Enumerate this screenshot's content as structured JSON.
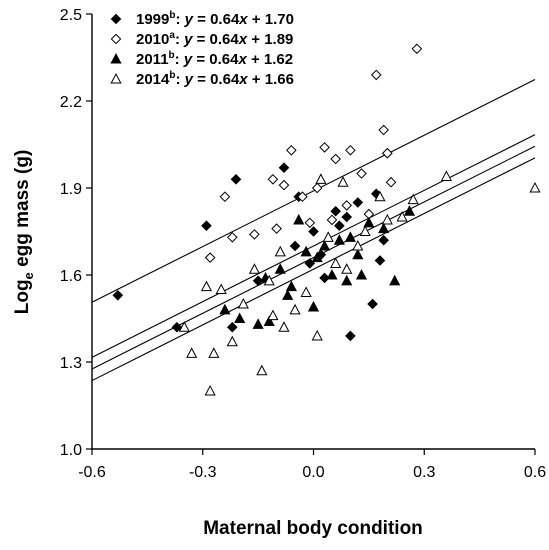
{
  "chart_data": {
    "type": "scatter",
    "xlabel": "Maternal body condition",
    "ylabel": "Log",
    "ylabel_sub": "e",
    "ylabel_rest": " egg mass (g)",
    "xlim": [
      -0.6,
      0.6
    ],
    "ylim": [
      1.0,
      2.5
    ],
    "xticks": [
      "-0.6",
      "-0.3",
      "0.0",
      "0.3",
      "0.6"
    ],
    "yticks": [
      "1.0",
      "1.3",
      "1.6",
      "1.9",
      "2.2",
      "2.5"
    ],
    "legend_position": "top-left",
    "series": [
      {
        "name": "1999",
        "sup": "b",
        "equation_y": "y",
        "equation_x": "x",
        "equation_text": " = 0.64",
        "equation_tail": " + 1.70",
        "marker": "diamond-filled",
        "slope": 0.64,
        "intercept": 1.7,
        "points": [
          [
            -0.53,
            1.53
          ],
          [
            -0.29,
            1.77
          ],
          [
            -0.37,
            1.42
          ],
          [
            -0.21,
            1.93
          ],
          [
            -0.08,
            1.97
          ],
          [
            -0.04,
            1.87
          ],
          [
            0.0,
            1.75
          ],
          [
            0.02,
            1.67
          ],
          [
            -0.01,
            1.64
          ],
          [
            0.06,
            1.82
          ],
          [
            0.09,
            1.8
          ],
          [
            0.1,
            1.39
          ],
          [
            0.16,
            1.5
          ],
          [
            0.18,
            1.65
          ],
          [
            0.19,
            1.72
          ],
          [
            0.2,
            2.02
          ],
          [
            0.17,
            1.88
          ],
          [
            -0.22,
            1.42
          ],
          [
            -0.15,
            1.58
          ],
          [
            0.03,
            1.59
          ],
          [
            0.07,
            1.77
          ],
          [
            0.12,
            1.85
          ],
          [
            -0.05,
            1.7
          ]
        ]
      },
      {
        "name": "2010",
        "sup": "a",
        "equation_y": "y",
        "equation_x": "x",
        "equation_text": " = 0.64",
        "equation_tail": " + 1.89",
        "marker": "diamond-open",
        "slope": 0.64,
        "intercept": 1.89,
        "points": [
          [
            0.28,
            2.38
          ],
          [
            0.17,
            2.29
          ],
          [
            0.19,
            2.1
          ],
          [
            0.2,
            2.02
          ],
          [
            -0.16,
            1.74
          ],
          [
            -0.22,
            1.73
          ],
          [
            -0.24,
            1.87
          ],
          [
            -0.28,
            1.66
          ],
          [
            -0.08,
            1.91
          ],
          [
            -0.06,
            2.03
          ],
          [
            0.03,
            2.04
          ],
          [
            0.06,
            2.0
          ],
          [
            0.1,
            2.03
          ],
          [
            0.13,
            1.95
          ],
          [
            0.01,
            1.9
          ],
          [
            -0.03,
            1.87
          ],
          [
            -0.01,
            1.78
          ],
          [
            0.05,
            1.79
          ],
          [
            0.09,
            1.84
          ],
          [
            -0.11,
            1.93
          ],
          [
            -0.1,
            1.76
          ],
          [
            0.15,
            1.81
          ],
          [
            0.21,
            1.92
          ]
        ]
      },
      {
        "name": "2011",
        "sup": "b",
        "equation_y": "y",
        "equation_x": "x",
        "equation_text": " = 0.64",
        "equation_tail": " + 1.62",
        "marker": "triangle-filled",
        "slope": 0.64,
        "intercept": 1.62,
        "points": [
          [
            -0.24,
            1.48
          ],
          [
            -0.2,
            1.45
          ],
          [
            -0.15,
            1.43
          ],
          [
            -0.12,
            1.44
          ],
          [
            -0.13,
            1.59
          ],
          [
            -0.09,
            1.62
          ],
          [
            -0.06,
            1.56
          ],
          [
            -0.04,
            1.79
          ],
          [
            -0.02,
            1.68
          ],
          [
            0.01,
            1.66
          ],
          [
            0.03,
            1.7
          ],
          [
            0.05,
            1.6
          ],
          [
            0.07,
            1.72
          ],
          [
            0.09,
            1.58
          ],
          [
            0.12,
            1.67
          ],
          [
            0.15,
            1.78
          ],
          [
            0.19,
            1.76
          ],
          [
            0.22,
            1.58
          ],
          [
            0.26,
            1.82
          ],
          [
            -0.07,
            1.53
          ],
          [
            0.0,
            1.49
          ],
          [
            0.1,
            1.73
          ],
          [
            0.13,
            1.6
          ]
        ]
      },
      {
        "name": "2014",
        "sup": "b",
        "equation_y": "y",
        "equation_x": "x",
        "equation_text": " = 0.64",
        "equation_tail": " + 1.66",
        "marker": "triangle-open",
        "slope": 0.64,
        "intercept": 1.66,
        "points": [
          [
            -0.35,
            1.42
          ],
          [
            -0.33,
            1.33
          ],
          [
            -0.29,
            1.56
          ],
          [
            -0.27,
            1.33
          ],
          [
            -0.28,
            1.2
          ],
          [
            -0.25,
            1.55
          ],
          [
            -0.22,
            1.37
          ],
          [
            -0.19,
            1.5
          ],
          [
            -0.14,
            1.27
          ],
          [
            -0.16,
            1.62
          ],
          [
            -0.11,
            1.46
          ],
          [
            -0.08,
            1.42
          ],
          [
            -0.05,
            1.48
          ],
          [
            -0.02,
            1.54
          ],
          [
            0.01,
            1.39
          ],
          [
            0.04,
            1.73
          ],
          [
            0.06,
            1.64
          ],
          [
            0.09,
            1.62
          ],
          [
            0.12,
            1.7
          ],
          [
            0.14,
            1.75
          ],
          [
            0.18,
            1.87
          ],
          [
            0.2,
            1.79
          ],
          [
            0.24,
            1.8
          ],
          [
            0.27,
            1.86
          ],
          [
            0.36,
            1.94
          ],
          [
            0.6,
            1.9
          ],
          [
            0.08,
            1.92
          ],
          [
            0.02,
            1.93
          ],
          [
            -0.09,
            1.68
          ],
          [
            -0.12,
            1.58
          ]
        ]
      }
    ]
  }
}
